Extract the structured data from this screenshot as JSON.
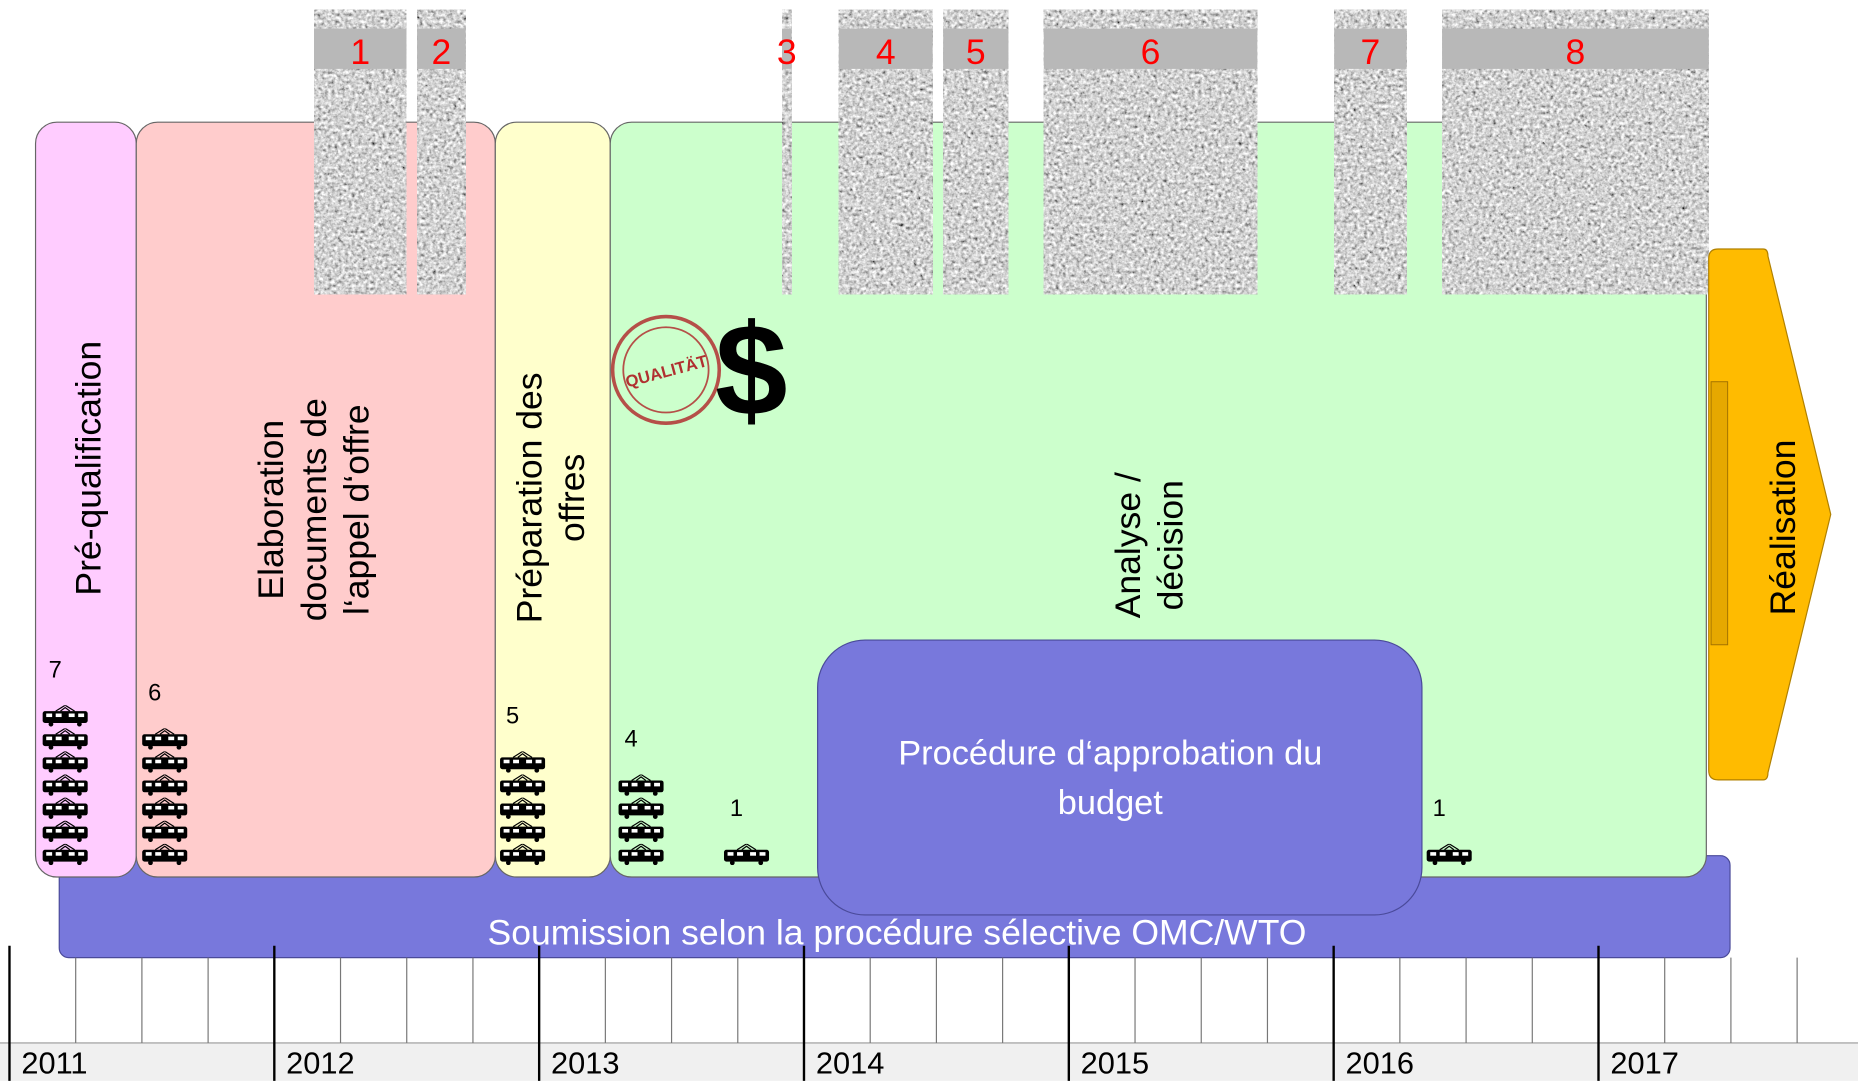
{
  "phases": [
    {
      "lines": [
        "Pré-qualification"
      ],
      "trams": 7
    },
    {
      "lines": [
        "Elaboration",
        "documents de",
        "l‘appel d‘offre"
      ],
      "trams": 6
    },
    {
      "lines": [
        "Préparation des",
        "offres"
      ],
      "trams": 5
    },
    {
      "lines": [
        "Analyse /",
        "décision"
      ],
      "trams": 4
    }
  ],
  "extra_trams": [
    1,
    1
  ],
  "realisation": "Réalisation",
  "submission": "Soumission selon la procédure sélective OMC/WTO",
  "approval": [
    "Procédure d‘approbation du",
    "budget"
  ],
  "blocks": [
    "1",
    "2",
    "3",
    "4",
    "5",
    "6",
    "7",
    "8"
  ],
  "stamp": "QUALITÄT",
  "dollar": "$",
  "years": [
    "2011",
    "2012",
    "2013",
    "2014",
    "2015",
    "2016",
    "2017"
  ]
}
